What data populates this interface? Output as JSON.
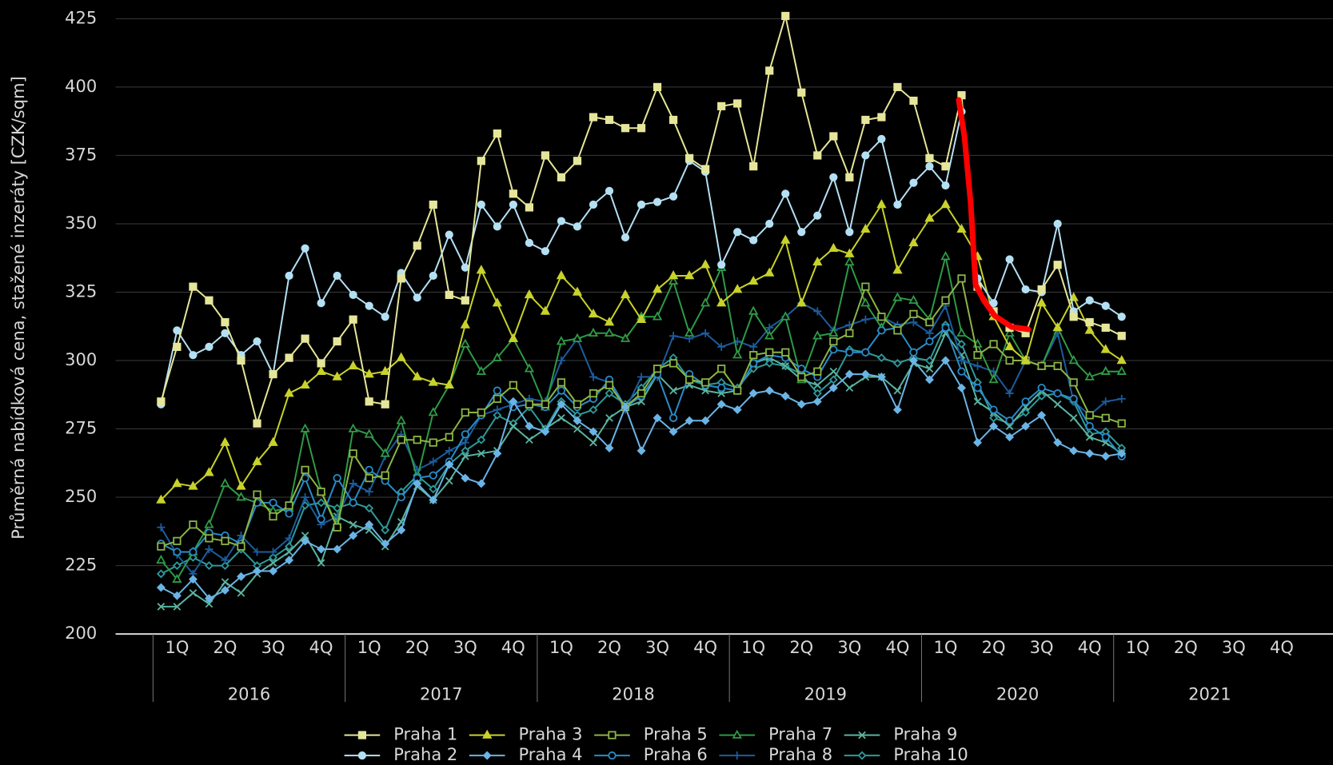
{
  "chart_data": {
    "type": "line",
    "y_label": "Průměrná nabídková cena, stažené inzeráty [CZK/sqm]",
    "quarters": [
      "1Q",
      "2Q",
      "3Q",
      "4Q"
    ],
    "years": [
      "2016",
      "2017",
      "2018",
      "2019",
      "2020",
      "2021"
    ],
    "ylim": [
      200,
      425
    ],
    "yticks": [
      200,
      225,
      250,
      275,
      300,
      325,
      350,
      375,
      400,
      425
    ],
    "grid": true,
    "legend": "bottom",
    "series": [
      {
        "name": "Praha 1",
        "color": "#e6e69a",
        "marker": "square",
        "values": [
          285,
          305,
          327,
          322,
          314,
          300,
          277,
          295,
          301,
          308,
          299,
          307,
          315,
          285,
          284,
          330,
          342,
          357,
          324,
          322,
          373,
          383,
          361,
          356,
          375,
          367,
          373,
          389,
          388,
          385,
          385,
          400,
          388,
          374,
          370,
          393,
          394,
          371,
          406,
          426,
          398,
          375,
          382,
          367,
          388,
          389,
          400,
          395,
          374,
          371,
          397,
          327,
          318,
          312,
          310,
          326,
          335,
          316,
          314,
          312,
          309
        ]
      },
      {
        "name": "Praha 2",
        "color": "#b4e0f4",
        "marker": "circle",
        "values": [
          284,
          311,
          302,
          305,
          310,
          302,
          307,
          295,
          331,
          341,
          321,
          331,
          324,
          320,
          316,
          332,
          323,
          331,
          346,
          334,
          357,
          349,
          357,
          343,
          340,
          351,
          349,
          357,
          362,
          345,
          357,
          358,
          360,
          373,
          369,
          335,
          347,
          344,
          350,
          361,
          347,
          353,
          367,
          347,
          375,
          381,
          357,
          365,
          371,
          364,
          391,
          330,
          321,
          337,
          326,
          325,
          350,
          318,
          322,
          320,
          316
        ]
      },
      {
        "name": "Praha 3",
        "color": "#c8d22a",
        "marker": "triangle",
        "values": [
          249,
          255,
          254,
          259,
          270,
          254,
          263,
          270,
          288,
          291,
          296,
          294,
          298,
          295,
          296,
          301,
          294,
          292,
          291,
          313,
          333,
          321,
          308,
          324,
          318,
          331,
          325,
          317,
          314,
          324,
          315,
          326,
          331,
          331,
          335,
          321,
          326,
          329,
          332,
          344,
          321,
          336,
          341,
          339,
          348,
          357,
          333,
          343,
          352,
          357,
          348,
          338,
          316,
          305,
          300,
          321,
          312,
          323,
          311,
          304,
          300
        ]
      },
      {
        "name": "Praha 4",
        "color": "#6ab4e6",
        "marker": "diamond",
        "values": [
          217,
          214,
          220,
          213,
          216,
          221,
          223,
          223,
          227,
          234,
          231,
          231,
          236,
          240,
          233,
          238,
          255,
          249,
          262,
          257,
          255,
          266,
          285,
          276,
          274,
          284,
          278,
          274,
          268,
          283,
          267,
          279,
          274,
          278,
          278,
          284,
          282,
          288,
          289,
          287,
          284,
          285,
          290,
          295,
          295,
          294,
          282,
          300,
          293,
          300,
          290,
          270,
          276,
          272,
          276,
          280,
          270,
          267,
          266,
          265,
          266
        ]
      },
      {
        "name": "Praha 5",
        "color": "#8cb446",
        "marker": "square-open",
        "values": [
          232,
          234,
          240,
          235,
          234,
          232,
          251,
          243,
          247,
          260,
          252,
          239,
          266,
          257,
          258,
          271,
          271,
          270,
          272,
          281,
          281,
          286,
          291,
          284,
          284,
          292,
          284,
          288,
          291,
          283,
          288,
          297,
          299,
          293,
          292,
          297,
          289,
          302,
          303,
          303,
          294,
          296,
          307,
          310,
          327,
          316,
          311,
          317,
          314,
          322,
          330,
          302,
          306,
          300,
          300,
          298,
          298,
          292,
          280,
          279,
          277
        ]
      },
      {
        "name": "Praha 6",
        "color": "#2a8cc8",
        "marker": "circle-open",
        "values": [
          233,
          230,
          230,
          237,
          236,
          233,
          248,
          248,
          244,
          257,
          242,
          257,
          248,
          260,
          256,
          250,
          257,
          258,
          263,
          273,
          280,
          289,
          283,
          284,
          283,
          289,
          283,
          286,
          293,
          283,
          287,
          295,
          279,
          295,
          291,
          290,
          289,
          299,
          302,
          301,
          297,
          294,
          304,
          303,
          303,
          311,
          312,
          303,
          307,
          312,
          296,
          290,
          282,
          278,
          285,
          290,
          288,
          286,
          276,
          272,
          265
        ]
      },
      {
        "name": "Praha 7",
        "color": "#2e9a46",
        "marker": "triangle-open",
        "values": [
          227,
          220,
          230,
          240,
          255,
          250,
          248,
          245,
          246,
          275,
          252,
          240,
          275,
          273,
          266,
          278,
          257,
          281,
          291,
          306,
          296,
          301,
          308,
          297,
          283,
          307,
          308,
          310,
          310,
          308,
          316,
          316,
          329,
          310,
          321,
          334,
          302,
          318,
          309,
          316,
          293,
          309,
          310,
          336,
          321,
          312,
          323,
          322,
          315,
          338,
          310,
          306,
          293,
          310,
          300,
          298,
          312,
          300,
          294,
          296,
          296
        ]
      },
      {
        "name": "Praha 8",
        "color": "#1c5c9c",
        "marker": "plus",
        "values": [
          239,
          229,
          222,
          231,
          227,
          236,
          230,
          230,
          235,
          250,
          240,
          243,
          255,
          252,
          265,
          273,
          260,
          263,
          267,
          270,
          280,
          282,
          284,
          286,
          285,
          300,
          308,
          294,
          292,
          282,
          294,
          294,
          309,
          308,
          310,
          305,
          307,
          305,
          312,
          316,
          321,
          318,
          311,
          313,
          315,
          316,
          313,
          314,
          310,
          320,
          300,
          298,
          296,
          288,
          300,
          298,
          310,
          285,
          280,
          285,
          286
        ]
      },
      {
        "name": "Praha 9",
        "color": "#5ab4a0",
        "marker": "x",
        "values": [
          210,
          210,
          215,
          211,
          219,
          215,
          222,
          226,
          230,
          236,
          226,
          243,
          240,
          238,
          232,
          241,
          254,
          249,
          256,
          265,
          266,
          267,
          276,
          271,
          275,
          279,
          275,
          270,
          279,
          283,
          285,
          295,
          289,
          291,
          289,
          288,
          289,
          299,
          301,
          298,
          293,
          291,
          296,
          290,
          294,
          294,
          289,
          299,
          297,
          310,
          302,
          285,
          281,
          276,
          283,
          289,
          284,
          279,
          272,
          270,
          266
        ]
      },
      {
        "name": "Praha 10",
        "color": "#2e9a9a",
        "marker": "diamond-open",
        "values": [
          222,
          225,
          228,
          225,
          225,
          231,
          225,
          228,
          232,
          247,
          248,
          246,
          248,
          246,
          238,
          252,
          258,
          253,
          262,
          267,
          271,
          280,
          277,
          283,
          275,
          285,
          280,
          282,
          288,
          284,
          290,
          297,
          301,
          293,
          291,
          292,
          290,
          297,
          299,
          298,
          295,
          288,
          293,
          304,
          303,
          301,
          299,
          301,
          300,
          313,
          306,
          292,
          279,
          277,
          281,
          287,
          288,
          285,
          273,
          274,
          268
        ]
      }
    ]
  }
}
